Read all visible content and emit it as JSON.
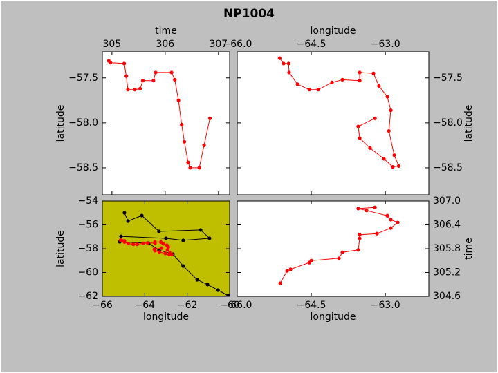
{
  "title": "NP1004",
  "chart_data": [
    {
      "type": "line",
      "xlabel": "time",
      "ylabel": "latitude",
      "xaxis": "top",
      "yaxis": "left",
      "background": "#ffffff",
      "xlim": [
        304.82,
        307.21
      ],
      "ylim": [
        -58.8,
        -57.21
      ],
      "xticks": [
        305,
        306,
        307
      ],
      "yticks": [
        {
          "value": -57.5,
          "label": "−57.5"
        },
        {
          "value": -58.0,
          "label": "−58.0"
        },
        {
          "value": -58.5,
          "label": "−58.5"
        }
      ],
      "series": [
        {
          "color": "#ff0000",
          "x": [
            304.94,
            304.97,
            305.23,
            305.27,
            305.3,
            305.43,
            305.53,
            305.58,
            305.78,
            305.82,
            306.12,
            306.18,
            306.25,
            306.31,
            306.36,
            306.43,
            306.47,
            306.64,
            306.73,
            306.84
          ],
          "values": [
            -57.31,
            -57.33,
            -57.34,
            -57.48,
            -57.63,
            -57.63,
            -57.62,
            -57.53,
            -57.53,
            -57.44,
            -57.44,
            -57.52,
            -57.75,
            -58.02,
            -58.21,
            -58.44,
            -58.5,
            -58.5,
            -58.25,
            -57.95
          ]
        }
      ]
    },
    {
      "type": "line",
      "xlabel": "longitude",
      "ylabel": "latitude",
      "xaxis": "top",
      "yaxis": "right",
      "background": "#ffffff",
      "xlim": [
        -66.0,
        -62.12
      ],
      "ylim": [
        -58.8,
        -57.21
      ],
      "xticks": [
        {
          "value": -66.0,
          "label": "−66.0"
        },
        {
          "value": -64.5,
          "label": "−64.5"
        },
        {
          "value": -63.0,
          "label": "−63.0"
        }
      ],
      "yticks": [
        {
          "value": -57.5,
          "label": "−57.5"
        },
        {
          "value": -58.0,
          "label": "−58.0"
        },
        {
          "value": -58.5,
          "label": "−58.5"
        }
      ],
      "series": [
        {
          "color": "#ff0000",
          "x": [
            -65.14,
            -65.06,
            -64.96,
            -64.95,
            -64.78,
            -64.54,
            -64.36,
            -64.08,
            -63.87,
            -63.52,
            -63.52,
            -63.24,
            -63.13,
            -62.96,
            -62.89,
            -62.93,
            -62.82,
            -62.73,
            -62.85,
            -63.03,
            -63.31,
            -63.52,
            -63.55,
            -63.21
          ],
          "values": [
            -57.28,
            -57.34,
            -57.34,
            -57.44,
            -57.57,
            -57.63,
            -57.63,
            -57.55,
            -57.52,
            -57.53,
            -57.44,
            -57.45,
            -57.59,
            -57.71,
            -57.86,
            -58.09,
            -58.36,
            -58.48,
            -58.49,
            -58.4,
            -58.28,
            -58.17,
            -58.04,
            -57.95
          ]
        }
      ]
    },
    {
      "type": "line",
      "xlabel": "longitude",
      "ylabel": "latitude",
      "xaxis": "bottom",
      "yaxis": "left",
      "background": "#bfbf00",
      "xlim": [
        -66,
        -60
      ],
      "ylim": [
        -62,
        -54
      ],
      "xticks": [
        {
          "value": -66,
          "label": "−66"
        },
        {
          "value": -64,
          "label": "−64"
        },
        {
          "value": -62,
          "label": "−62"
        },
        {
          "value": -60,
          "label": "−60"
        }
      ],
      "yticks": [
        {
          "value": -54,
          "label": "−54"
        },
        {
          "value": -56,
          "label": "−56"
        },
        {
          "value": -58,
          "label": "−58"
        },
        {
          "value": -60,
          "label": "−60"
        },
        {
          "value": -62,
          "label": "−62"
        }
      ],
      "series": [
        {
          "color": "#000000",
          "x": [
            -64.96,
            -64.79,
            -64.14,
            -63.33,
            -61.37,
            -60.95,
            -62.19,
            -63.0,
            -65.12,
            -65.18,
            -63.82,
            -63.33,
            -62.67,
            -62.19,
            -61.53,
            -61.04,
            -60.55,
            -60.07
          ],
          "values": [
            -54.99,
            -55.68,
            -55.22,
            -56.55,
            -56.43,
            -57.13,
            -57.3,
            -57.13,
            -56.96,
            -57.42,
            -57.54,
            -58.12,
            -58.46,
            -59.45,
            -60.61,
            -61.01,
            -61.48,
            -61.94
          ]
        },
        {
          "color": "#ff0000",
          "x": [
            -65.14,
            -65.06,
            -64.96,
            -64.95,
            -64.78,
            -64.54,
            -64.36,
            -64.08,
            -63.87,
            -63.52,
            -63.52,
            -63.24,
            -63.13,
            -62.96,
            -62.89,
            -62.93,
            -62.82,
            -62.73,
            -62.85,
            -63.03,
            -63.31,
            -63.52,
            -63.55,
            -63.21
          ],
          "values": [
            -57.28,
            -57.34,
            -57.34,
            -57.44,
            -57.57,
            -57.63,
            -57.63,
            -57.55,
            -57.52,
            -57.53,
            -57.44,
            -57.45,
            -57.59,
            -57.71,
            -57.86,
            -58.09,
            -58.36,
            -58.48,
            -58.49,
            -58.4,
            -58.28,
            -58.17,
            -58.04,
            -57.95
          ]
        }
      ]
    },
    {
      "type": "line",
      "xlabel": "longitude",
      "ylabel": "time",
      "xaxis": "bottom",
      "yaxis": "right",
      "background": "#ffffff",
      "xlim": [
        -66.0,
        -62.12
      ],
      "ylim": [
        304.6,
        307.0
      ],
      "xticks": [
        {
          "value": -66.0,
          "label": "−66.0"
        },
        {
          "value": -64.5,
          "label": "−64.5"
        },
        {
          "value": -63.0,
          "label": "−63.0"
        }
      ],
      "yticks": [
        {
          "value": 307.0,
          "label": "307.0"
        },
        {
          "value": 306.4,
          "label": "306.4"
        },
        {
          "value": 305.8,
          "label": "305.8"
        },
        {
          "value": 305.2,
          "label": "305.2"
        },
        {
          "value": 304.6,
          "label": "304.6"
        }
      ],
      "series": [
        {
          "color": "#ff0000",
          "x": [
            -65.13,
            -64.99,
            -64.92,
            -64.54,
            -64.5,
            -63.94,
            -63.87,
            -63.55,
            -63.52,
            -63.52,
            -63.17,
            -62.89,
            -62.75,
            -62.89,
            -62.96,
            -63.38,
            -63.55,
            -63.21
          ],
          "values": [
            304.93,
            305.24,
            305.28,
            305.45,
            305.5,
            305.56,
            305.71,
            305.77,
            306.06,
            306.15,
            306.18,
            306.32,
            306.46,
            306.53,
            306.63,
            306.76,
            306.81,
            306.84
          ]
        }
      ]
    }
  ]
}
